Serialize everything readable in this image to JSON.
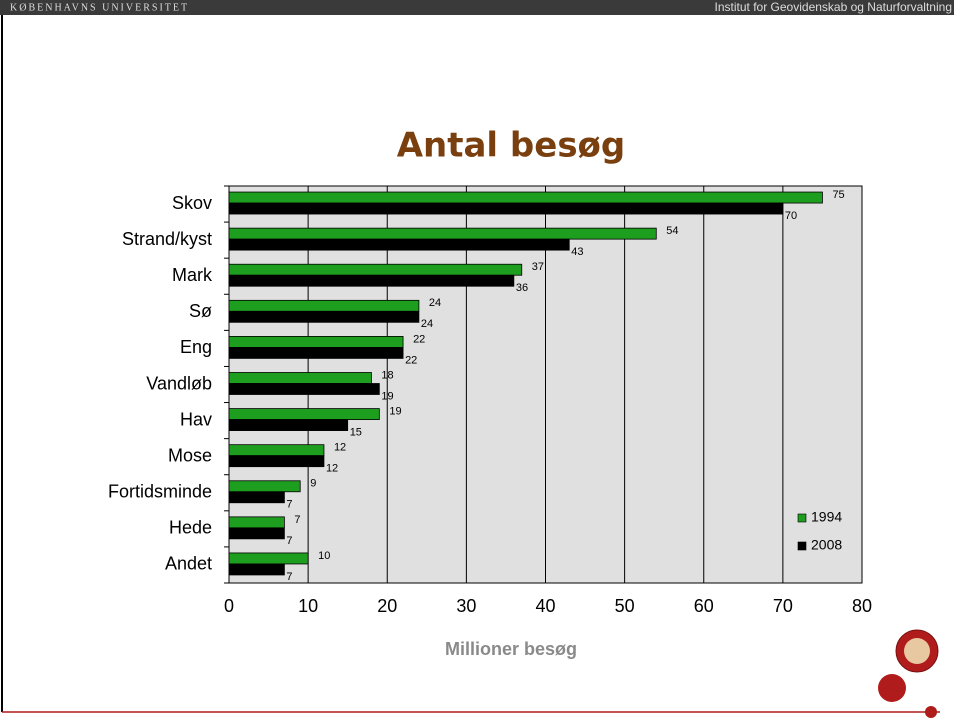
{
  "header": {
    "left": "KØBENHAVNS UNIVERSITET",
    "right": "Institut for Geovidenskab og Naturforvaltning"
  },
  "chart_data": {
    "type": "bar",
    "orientation": "horizontal",
    "title": "Antal besøg",
    "xlabel": "Millioner besøg",
    "categories": [
      "Skov",
      "Strand/kyst",
      "Mark",
      "Sø",
      "Eng",
      "Vandløb",
      "Hav",
      "Mose",
      "Fortidsminde",
      "Hede",
      "Andet"
    ],
    "series": [
      {
        "name": "1994",
        "color": "#1e9e1e",
        "values": [
          75,
          54,
          37,
          24,
          22,
          18,
          19,
          12,
          9,
          7,
          10
        ]
      },
      {
        "name": "2008",
        "color": "#000000",
        "values": [
          70,
          43,
          36,
          24,
          22,
          19,
          15,
          12,
          7,
          7,
          7
        ]
      }
    ],
    "xlim": [
      0,
      80
    ],
    "xticks": [
      0,
      10,
      20,
      30,
      40,
      50,
      60,
      70,
      80
    ],
    "grid": true,
    "legend": "lower right"
  }
}
